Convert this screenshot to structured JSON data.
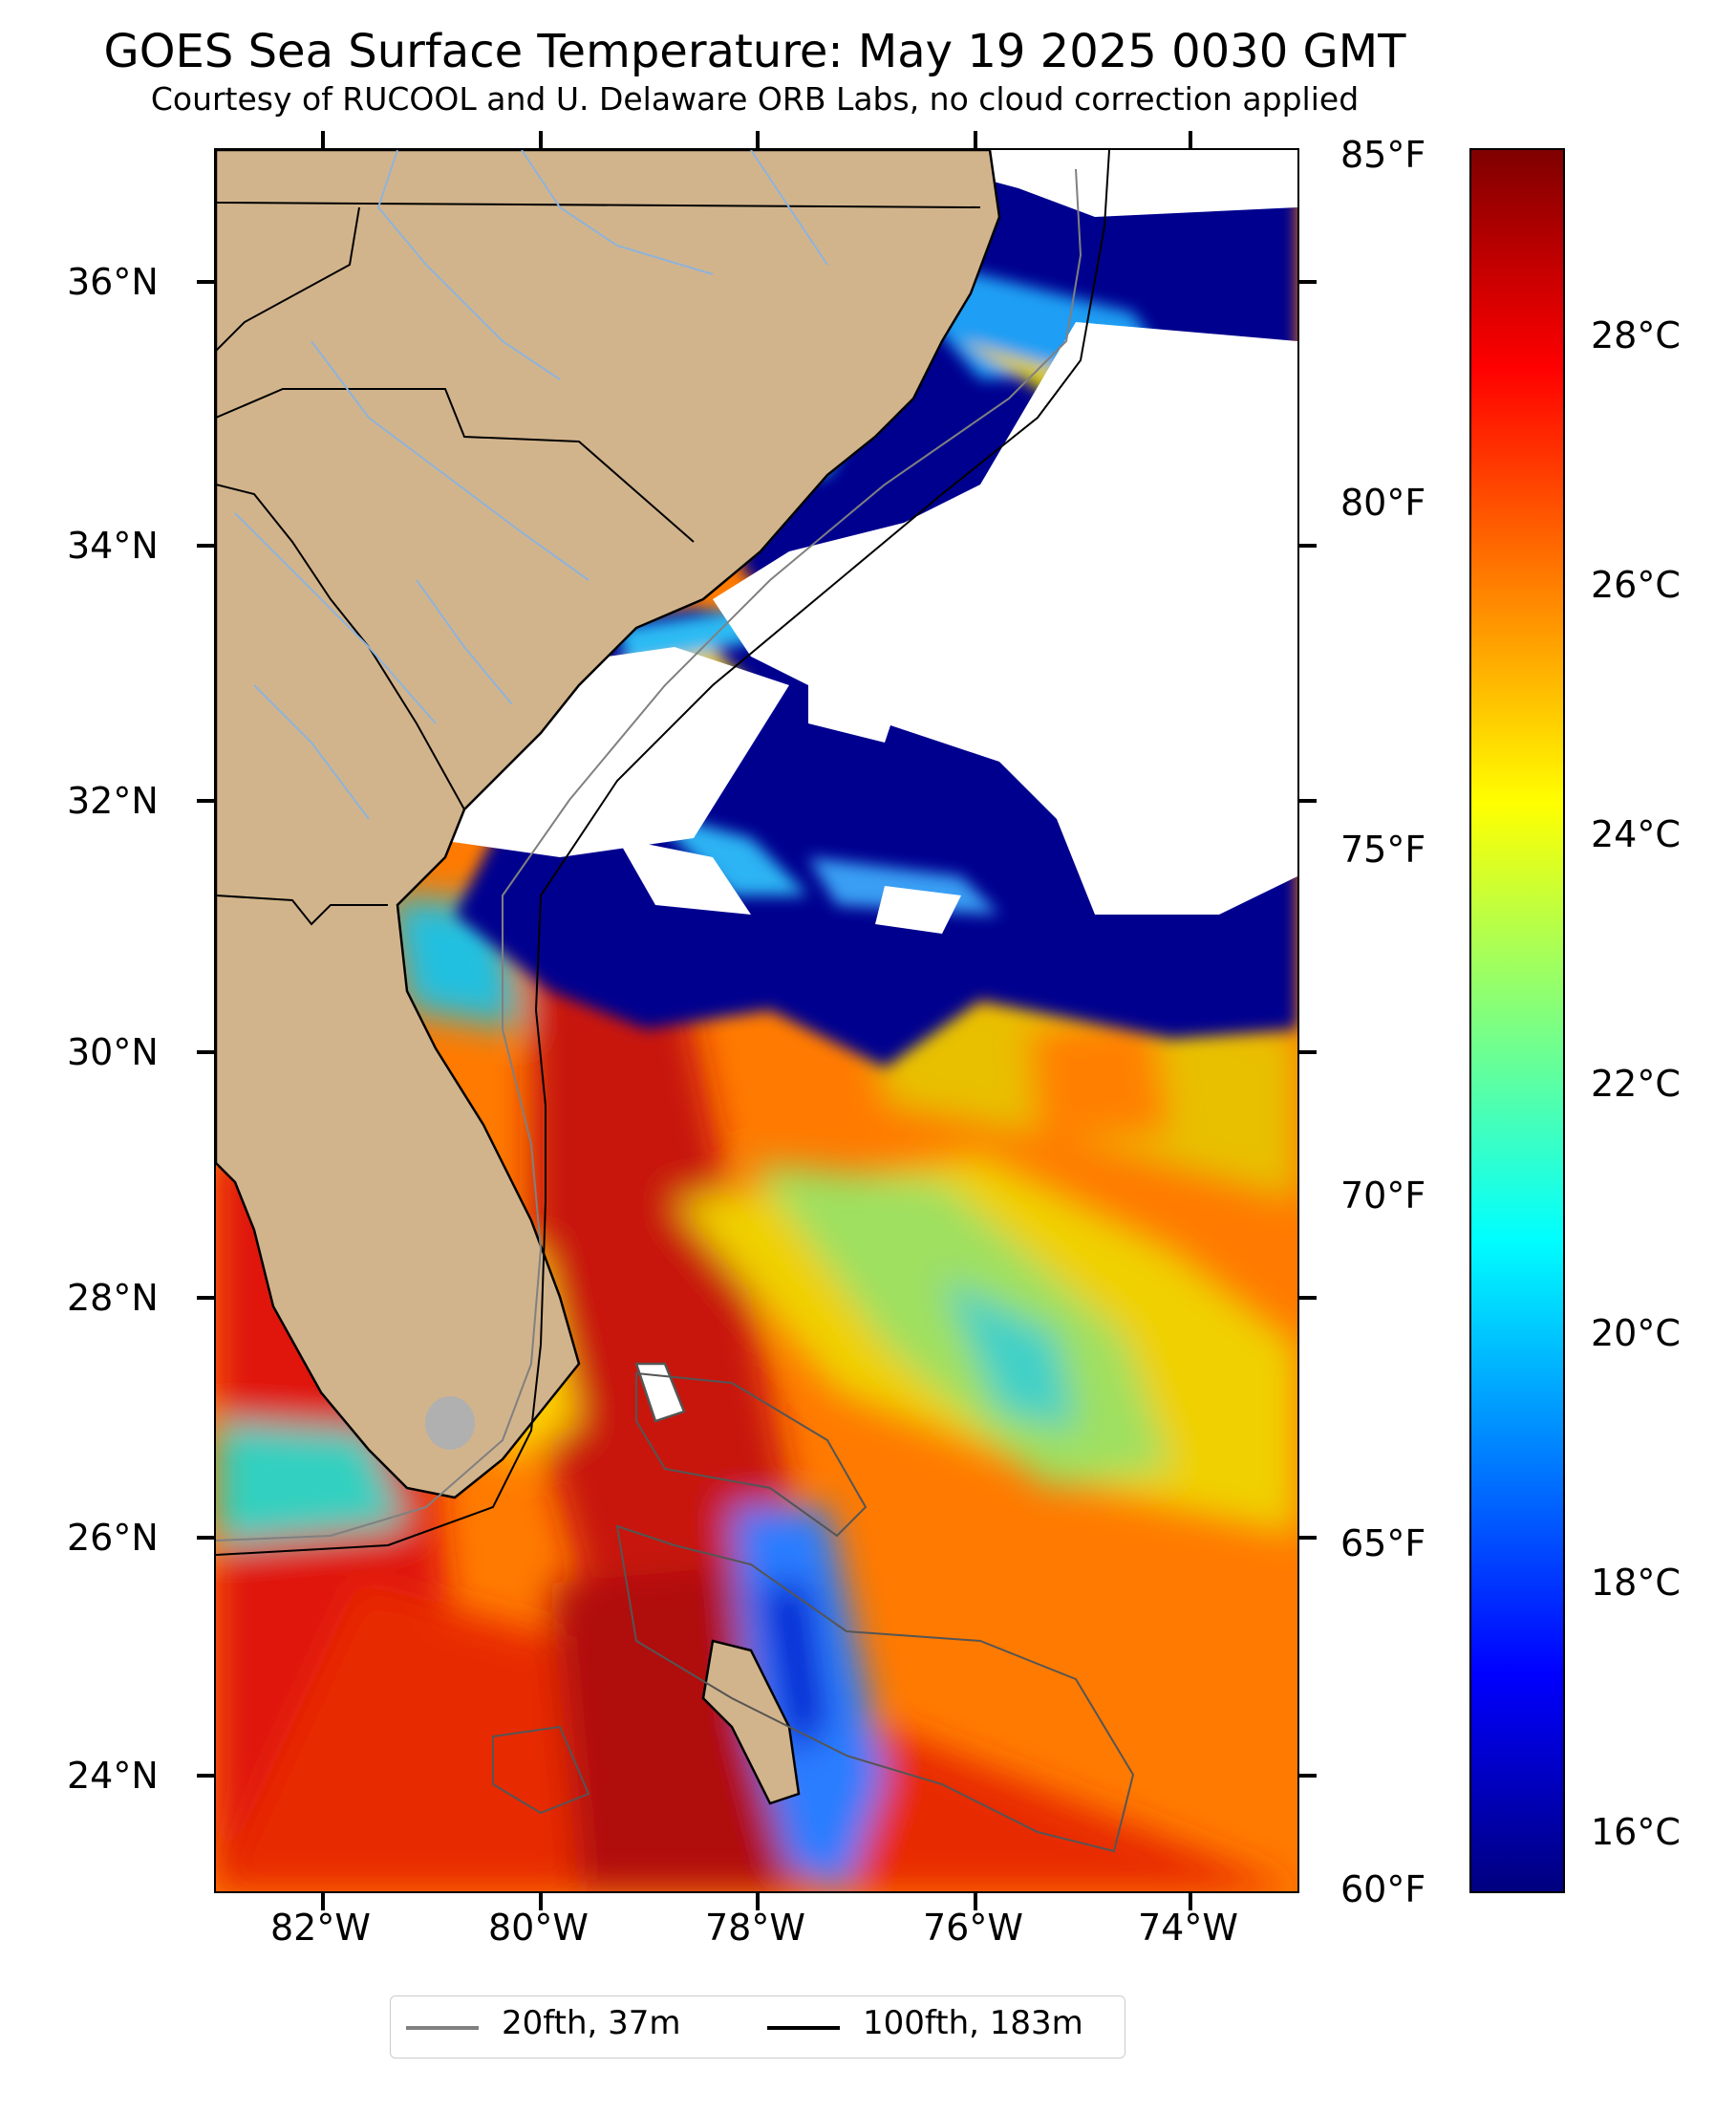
{
  "title": "GOES Sea Surface Temperature: May 19 2025 0030 GMT",
  "subtitle": "Courtesy of RUCOOL and U. Delaware ORB Labs, no cloud correction applied",
  "map": {
    "extent": {
      "lon_min": -83.0,
      "lon_max": -73.0,
      "lat_min": 23.1,
      "lat_max": 37.0
    },
    "lat_ticks": [
      "36°N",
      "34°N",
      "32°N",
      "30°N",
      "28°N",
      "26°N",
      "24°N"
    ],
    "lon_ticks": [
      "82°W",
      "80°W",
      "78°W",
      "76°W",
      "74°W"
    ],
    "land_color": "#d2b48c",
    "cloud_color": "#ffffff",
    "river_color": "#8fb3d9"
  },
  "colorbar": {
    "fahrenheit_labels": [
      "85°F",
      "80°F",
      "75°F",
      "70°F",
      "65°F",
      "60°F"
    ],
    "celsius_labels": [
      "28°C",
      "26°C",
      "24°C",
      "22°C",
      "20°C",
      "18°C",
      "16°C"
    ],
    "colormap": "jet"
  },
  "legend": {
    "items": [
      {
        "label": "20fth, 37m",
        "color": "#808080"
      },
      {
        "label": "100fth, 183m",
        "color": "#000000"
      }
    ]
  }
}
